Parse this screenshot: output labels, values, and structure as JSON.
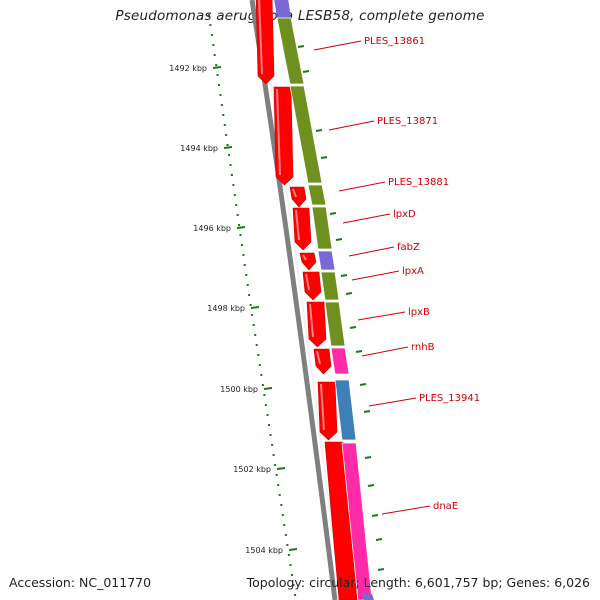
{
  "title": "Pseudomonas aeruginosa LESB58, complete genome",
  "footer": {
    "accession": "Accession: NC_011770",
    "summary": "Topology: circular; Length: 6,601,757 bp; Genes: 6,026"
  },
  "colors": {
    "backbone": "#808080",
    "cds": "#ff0000",
    "label": "#cc0000",
    "tick": "#1a7a1a",
    "olive": "#6f8f1f",
    "purple": "#7b68d6",
    "pink": "#ff2aa8",
    "steelblue": "#3f7fb8"
  },
  "scale": {
    "unit": "kbp",
    "ticks": [
      {
        "kbp": 1492,
        "label": "1492 kbp"
      },
      {
        "kbp": 1494,
        "label": "1494 kbp"
      },
      {
        "kbp": 1496,
        "label": "1496 kbp"
      },
      {
        "kbp": 1498,
        "label": "1498 kbp"
      },
      {
        "kbp": 1500,
        "label": "1500 kbp"
      },
      {
        "kbp": 1502,
        "label": "1502 kbp"
      },
      {
        "kbp": 1504,
        "label": "1504 kbp"
      }
    ]
  },
  "genes": [
    {
      "name": "PLES_13861"
    },
    {
      "name": "PLES_13871"
    },
    {
      "name": "PLES_13881"
    },
    {
      "name": "lpxD"
    },
    {
      "name": "fabZ"
    },
    {
      "name": "lpxA"
    },
    {
      "name": "lpxB"
    },
    {
      "name": "rnhB"
    },
    {
      "name": "PLES_13941"
    },
    {
      "name": "dnaE"
    }
  ],
  "cds_feature_colors": [
    "olive",
    "olive",
    "olive",
    "olive",
    "purple",
    "olive",
    "olive",
    "pink",
    "steelblue",
    "pink"
  ]
}
